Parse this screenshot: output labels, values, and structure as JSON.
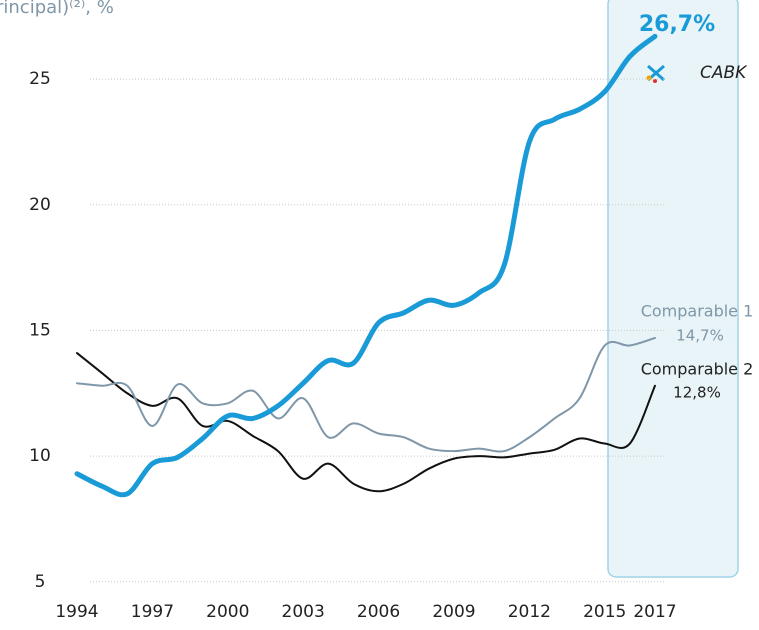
{
  "chart_data": {
    "type": "line",
    "title": "rincipal)⁽²⁾, %",
    "x": [
      1994,
      1995,
      1996,
      1997,
      1998,
      1999,
      2000,
      2001,
      2002,
      2003,
      2004,
      2005,
      2006,
      2007,
      2008,
      2009,
      2010,
      2011,
      2012,
      2013,
      2014,
      2015,
      2016,
      2017
    ],
    "series": [
      {
        "name": "CABK",
        "color": "#1a9bd7",
        "width": 5,
        "end_label": "26,7%",
        "values": [
          9.3,
          8.8,
          8.5,
          9.7,
          9.95,
          10.7,
          11.6,
          11.5,
          12.0,
          12.9,
          13.8,
          13.7,
          15.3,
          15.7,
          16.2,
          16.0,
          16.5,
          17.6,
          22.5,
          23.4,
          23.8,
          24.5,
          25.9,
          26.7
        ]
      },
      {
        "name": "Comparable 1",
        "color": "#7f97a8",
        "width": 2,
        "end_label": "14,7%",
        "values": [
          12.9,
          12.8,
          12.8,
          11.2,
          12.85,
          12.1,
          12.1,
          12.6,
          11.5,
          12.3,
          10.75,
          11.3,
          10.9,
          10.75,
          10.3,
          10.2,
          10.3,
          10.2,
          10.75,
          11.5,
          12.3,
          14.4,
          14.4,
          14.7
        ]
      },
      {
        "name": "Comparable 2",
        "color": "#111111",
        "width": 2,
        "end_label": "12,8%",
        "values": [
          14.1,
          13.3,
          12.5,
          12.0,
          12.3,
          11.2,
          11.4,
          10.8,
          10.2,
          9.1,
          9.7,
          8.9,
          8.6,
          8.9,
          9.5,
          9.9,
          10.0,
          9.95,
          10.1,
          10.25,
          10.7,
          10.5,
          10.5,
          12.8
        ]
      }
    ],
    "xlim": [
      1994,
      2017
    ],
    "xticks": [
      1994,
      1997,
      2000,
      2003,
      2006,
      2009,
      2012,
      2015,
      2017
    ],
    "ylim": [
      4.5,
      27.5
    ],
    "yticks": [
      5,
      10,
      15,
      20,
      25
    ],
    "grid": true
  }
}
